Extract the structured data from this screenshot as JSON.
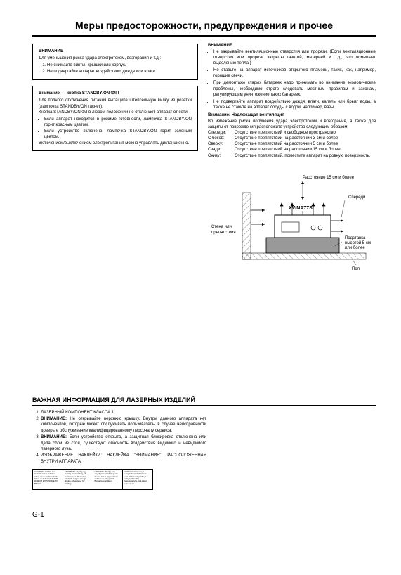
{
  "title": "Меры предосторожности, предупреждения и прочее",
  "box1": {
    "head": "ВНИМАНИЕ",
    "intro": "Для уменьшения риска удара электротоком, возгорания и т.д.:",
    "items": [
      "Не снимайте винты, крышки или корпус.",
      "Не подвергайте аппарат воздействию дождя или влаги."
    ]
  },
  "box2": {
    "head": "Внимание –– кнопка STANDBY/ON ⏻/I !",
    "p1": "Для полного отключения питания вытащите штепсельную вилку из розетки (лампочка STANDBY/ON гаснет).",
    "p2": "Кнопка STANDBY/ON ⏻/I в любом положении не отключает аппарат от сети.",
    "li1": "Если аппарат находится в режиме готовности, лампочка STANDBY/ON горит красным цветом.",
    "li2": "Если устройство включено, лампочка STANDBY/ON горит зеленым цветом.",
    "p3": "Включением/выключением электропитания можно управлять дистанционно."
  },
  "right1": {
    "head": "ВНИМАНИЕ",
    "items": [
      "Не закрывайте вентиляционные отверстия или прорези. (Если вентиляционные отверстия или прорези закрыты газетой, материей и т.д., это помешает выделению тепла.)",
      "Не ставьте на аппарат источников открытого пламени, таких, как, например, горящие свечи.",
      "При демонтаже старых батареек надо принимать во внимание экологические проблемы, необходимо строго следовать местным правилам и законам, регулирующим уничтожение таких батареек.",
      "Не подвергайте аппарат воздействию дождя, влаги, капель или брызг воды, а также не ставьте на аппарат сосуды с водой, например, вазы."
    ]
  },
  "vent": {
    "head": "Внимание: Надлежащая вентиляция",
    "intro": "Во избежание риска получения удара электротоком и возгорания, а также для защиты от повреждения расположите устройство следующим образом:",
    "rows": [
      {
        "k": "Спереди:",
        "v": "Отсутствие препятствий и свободное пространство"
      },
      {
        "k": "С боков:",
        "v": "Отсутствие препятствий на расстоянии 3 см и более"
      },
      {
        "k": "Сверху:",
        "v": "Отсутствие препятствий на расстоянии 5 см и более"
      },
      {
        "k": "Сзади:",
        "v": "Отсутствие препятствий на расстоянии 15 см и более"
      },
      {
        "k": "Снизу:",
        "v": "Отсутствие препятствий, поместите аппарат на ровную поверхность."
      }
    ]
  },
  "diagram": {
    "top_label": "Расстояние 15 см и более",
    "model": "XV-NA77SL",
    "wall": "Стена или\nпрепятствия",
    "front": "Спереди",
    "stand": "Подставка\nвысотой 5 см\nили более",
    "floor": "Пол",
    "colors": {
      "wall_hatch": "#888",
      "device_outline": "#000",
      "stand_fill": "#999",
      "floor_hatch": "#888"
    }
  },
  "section2": {
    "title": "ВАЖНАЯ ИНФОРМАЦИЯ ДЛЯ ЛАЗЕРНЫХ ИЗДЕЛИЙ",
    "items": [
      "ЛАЗЕРНЫЙ КОМПОНЕНТ КЛАССА 1",
      "<b>ВНИМАНИЕ:</b> Не открывайте верхнюю крышку. Внутри данного аппарата нет компонентов, которые может обслуживать пользователь; в случае неисправности доверьте обслуживание квалифицированному персоналу сервиса.",
      "<b>ВНИМАНИЕ:</b> Если устройство открыто, а защитная блокировка отключена или дала сбой из стоя, существует опасность воздействия видимого и невидимого лазерного луча.",
      "ИЗОБРАЖЕНИЕ НАКЛЕЙКИ: НАКЛЕЙКА \"ВНИМАНИЕ\", РАСПОЛОЖЕННАЯ ВНУТРИ АППАРАТА"
    ]
  },
  "sticker": {
    "c1": "CAUTION: Visible and invisible laser radiation when open and interlock failed or defeated. AVOID DIRECT EXPOSURE TO BEAM.",
    "c2": "ADVARSEL: Synlig og usynlig laserstråling når maskinen er åben eller interlock svigter. Undgå direkte udsættelse for stråling.",
    "c3": "VARNING: Synlig och osynlig laserstrålning när denna del är öppnad och spärren är urkopplad. Betrakta ej strålen.",
    "c4": "VARO: Avattaessa ja suojalukitus ohitettaessa olet alttiina näkyvälle ja näkymättömälle lasersäteilylle. Älä katso säteeseen."
  },
  "pageno": "G-1"
}
